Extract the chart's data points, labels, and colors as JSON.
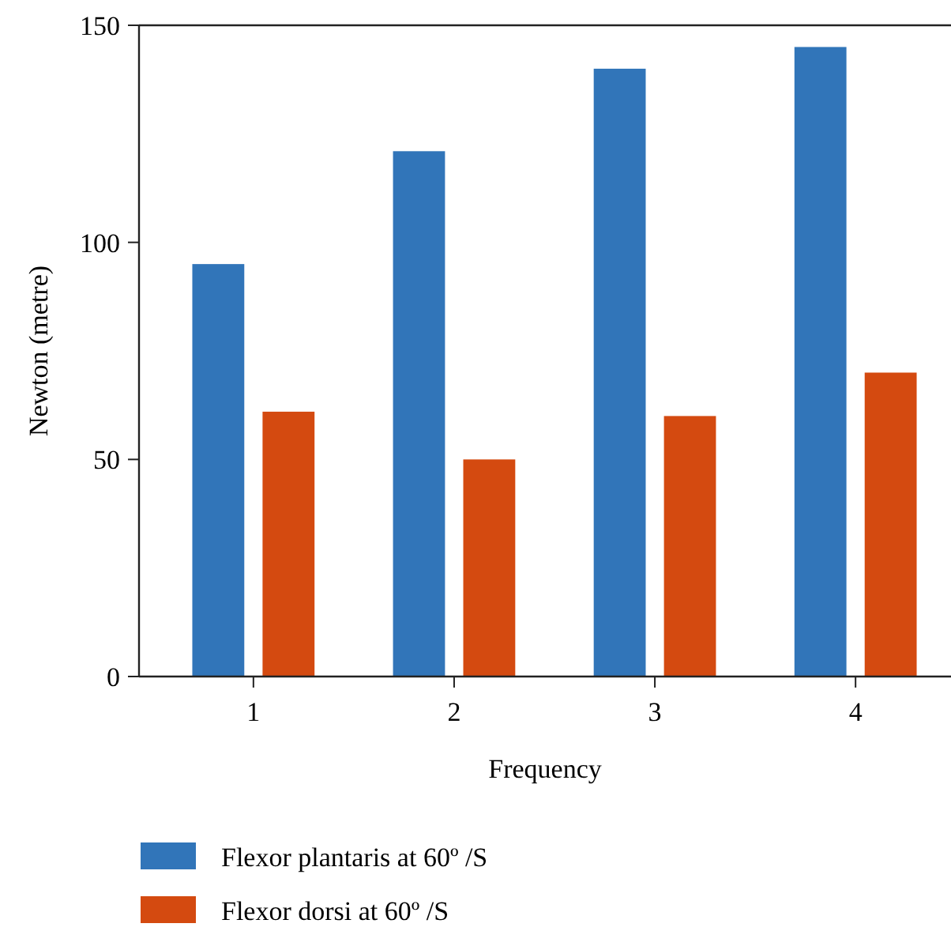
{
  "chart_data": {
    "type": "bar",
    "xlabel": "Frequency",
    "ylabel": "Newton (metre)",
    "categories": [
      "1",
      "2",
      "3",
      "4"
    ],
    "series": [
      {
        "name": "Flexor plantaris at 60º /S",
        "color": "#3175b9",
        "values": [
          95,
          121,
          140,
          145
        ]
      },
      {
        "name": "Flexor dorsi at 60º /S",
        "color": "#d44a10",
        "values": [
          61,
          50,
          60,
          70
        ]
      }
    ],
    "ylim": [
      0,
      150
    ],
    "yticks": [
      0,
      50,
      100,
      150
    ],
    "grid": false,
    "legend": "bottom"
  }
}
